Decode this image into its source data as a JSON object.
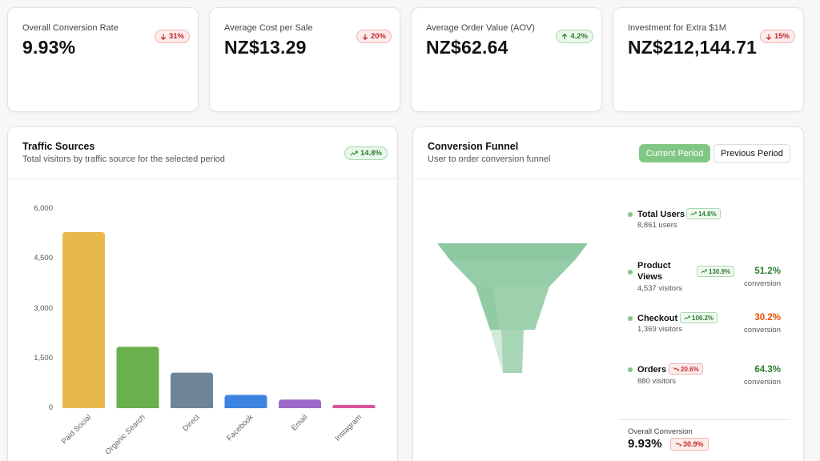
{
  "kpis": [
    {
      "label": "Overall Conversion Rate",
      "value": "9.93%",
      "change": "31%",
      "direction": "down"
    },
    {
      "label": "Average Cost per Sale",
      "value": "NZ$13.29",
      "change": "20%",
      "direction": "down"
    },
    {
      "label": "Average Order Value (AOV)",
      "value": "NZ$62.64",
      "change": "4.2%",
      "direction": "up"
    },
    {
      "label": "Investment for Extra $1M",
      "value": "NZ$212,144.71",
      "change": "15%",
      "direction": "down"
    }
  ],
  "traffic": {
    "title": "Traffic Sources",
    "subtitle": "Total visitors by traffic source for the selected period",
    "change": "14.8%"
  },
  "chart_data": {
    "type": "bar",
    "categories": [
      "Paid Social",
      "Organic Search",
      "Direct",
      "Facebook",
      "Email",
      "Instagram"
    ],
    "values": [
      5300,
      1850,
      1070,
      400,
      260,
      100
    ],
    "colors": [
      "#e8b94a",
      "#6ab04c",
      "#6e8597",
      "#3d83e0",
      "#9c6ac8",
      "#d9569a"
    ],
    "yticks": [
      "0",
      "1,500",
      "3,000",
      "4,500",
      "6,000"
    ],
    "ytick_values": [
      0,
      1500,
      3000,
      4500,
      6000
    ],
    "ylim": [
      0,
      6000
    ]
  },
  "funnel": {
    "title": "Conversion Funnel",
    "subtitle": "User to order conversion funnel",
    "current_label": "Current Period",
    "previous_label": "Previous Period",
    "stages": [
      {
        "name": "Total Users",
        "sub": "8,861 users",
        "change": "14.8%",
        "direction": "up",
        "pct": "",
        "pct_label": ""
      },
      {
        "name": "Product Views",
        "sub": "4,537 visitors",
        "change": "130.9%",
        "direction": "up",
        "pct": "51.2%",
        "pct_label": "conversion",
        "pct_color": "#2e7d32"
      },
      {
        "name": "Checkout",
        "sub": "1,369 visitors",
        "change": "106.2%",
        "direction": "up",
        "pct": "30.2%",
        "pct_label": "conversion",
        "pct_color": "#e65100"
      },
      {
        "name": "Orders",
        "sub": "880 visitors",
        "change": "20.6%",
        "direction": "down",
        "pct": "64.3%",
        "pct_label": "conversion",
        "pct_color": "#2e7d32"
      }
    ],
    "overall_label": "Overall Conversion",
    "overall_value": "9.93%",
    "overall_change": "30.9%"
  }
}
